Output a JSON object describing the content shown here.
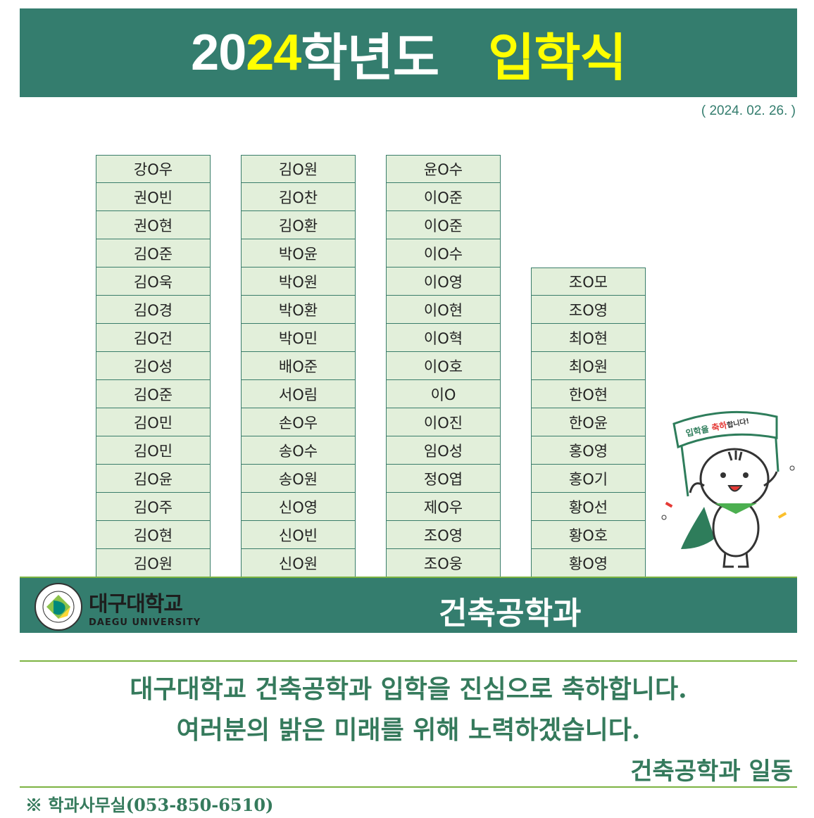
{
  "header": {
    "year_prefix": "20",
    "year_highlight": "24",
    "title_suffix": "학년도",
    "event": "입학식"
  },
  "date": "( 2024. 02. 26. )",
  "columns": [
    [
      "강O우",
      "권O빈",
      "권O현",
      "김O준",
      "김O욱",
      "김O경",
      "김O건",
      "김O성",
      "김O준",
      "김O민",
      "김O민",
      "김O윤",
      "김O주",
      "김O현",
      "김O원"
    ],
    [
      "김O원",
      "김O찬",
      "김O환",
      "박O윤",
      "박O원",
      "박O환",
      "박O민",
      "배O준",
      "서O림",
      "손O우",
      "송O수",
      "송O원",
      "신O영",
      "신O빈",
      "신O원"
    ],
    [
      "윤O수",
      "이O준",
      "이O준",
      "이O수",
      "이O영",
      "이O현",
      "이O혁",
      "이O호",
      "이O",
      "이O진",
      "임O성",
      "정O엽",
      "제O우",
      "조O영",
      "조O웅"
    ],
    [
      "조O모",
      "조O영",
      "최O현",
      "최O원",
      "한O현",
      "한O윤",
      "홍O영",
      "홍O기",
      "황O선",
      "황O호",
      "황O영"
    ]
  ],
  "banner": {
    "logo_kr": "대구대학교",
    "logo_en": "DAEGU UNIVERSITY",
    "department": "건축공학과"
  },
  "mascot": {
    "flag_text_1": "입학을 ",
    "flag_text_2": "축하",
    "flag_text_3": "합니다!"
  },
  "message": {
    "line1": "대구대학교 건축공학과 입학을 진심으로 축하합니다.",
    "line2": "여러분의 밝은 미래를 위해 노력하겠습니다.",
    "signature": "건축공학과 일동"
  },
  "footer": "※ 학과사무실(053-850-6510)",
  "colors": {
    "header_bg": "#347d6e",
    "highlight": "#ffff00",
    "cell_bg": "#e2efda",
    "text_green": "#357a5c",
    "accent_line": "#7cb342"
  }
}
